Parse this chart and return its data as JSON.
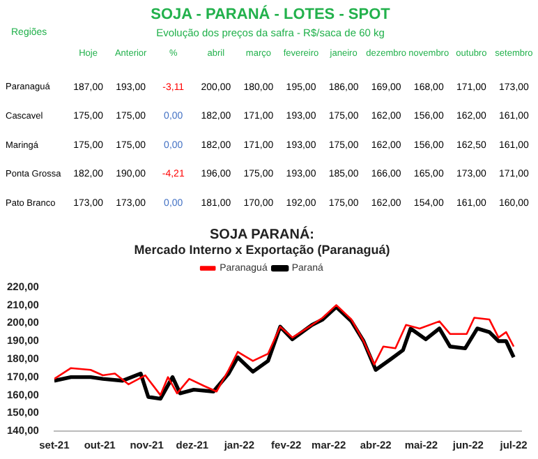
{
  "chart_data": [
    {
      "type": "heatmap",
      "title": "SOJA - PARANÁ - LOTES - SPOT",
      "subtitle": "Evolução dos preços da safra - R$/saca de 60 kg",
      "ylabel": "Regiões",
      "categories": [
        "Hoje",
        "Anterior",
        "%",
        "abril",
        "março",
        "fevereiro",
        "janeiro",
        "dezembro",
        "novembro",
        "outubro",
        "setembro"
      ],
      "y_categories": [
        "Paranaguá",
        "Cascavel",
        "Maringá",
        "Ponta Grossa",
        "Pato Branco"
      ],
      "cells": [
        [
          187,
          193,
          -3.11,
          200,
          180,
          195,
          186,
          169,
          168,
          171,
          173
        ],
        [
          175,
          175,
          0,
          182,
          171,
          193,
          175,
          162,
          156,
          162,
          161
        ],
        [
          175,
          175,
          0,
          182,
          171,
          193,
          175,
          162,
          156,
          162.5,
          161
        ],
        [
          182,
          190,
          -4.21,
          196,
          175,
          193,
          185,
          166,
          165,
          173,
          171
        ],
        [
          173,
          173,
          0,
          181,
          170,
          192,
          175,
          162,
          154,
          161,
          160
        ]
      ],
      "cell_labels": [
        [
          "187,00",
          "193,00",
          "-3,11",
          "200,00",
          "180,00",
          "195,00",
          "186,00",
          "169,00",
          "168,00",
          "171,00",
          "173,00"
        ],
        [
          "175,00",
          "175,00",
          "0,00",
          "182,00",
          "171,00",
          "193,00",
          "175,00",
          "162,00",
          "156,00",
          "162,00",
          "161,00"
        ],
        [
          "175,00",
          "175,00",
          "0,00",
          "182,00",
          "171,00",
          "193,00",
          "175,00",
          "162,00",
          "156,00",
          "162,50",
          "161,00"
        ],
        [
          "182,00",
          "190,00",
          "-4,21",
          "196,00",
          "175,00",
          "193,00",
          "185,00",
          "166,00",
          "165,00",
          "173,00",
          "171,00"
        ],
        [
          "173,00",
          "173,00",
          "0,00",
          "181,00",
          "170,00",
          "192,00",
          "175,00",
          "162,00",
          "154,00",
          "161,00",
          "160,00"
        ]
      ]
    },
    {
      "type": "line",
      "title": "SOJA PARANÁ:",
      "subtitle": "Mercado Interno x Exportação (Paranaguá)",
      "legend": "top",
      "grid": false,
      "xlim": [
        "2021-09-01",
        "2022-07-06"
      ],
      "xticks": [
        {
          "value": "2021-09-01",
          "label": "set-21"
        },
        {
          "value": "2021-10-01",
          "label": "out-21"
        },
        {
          "value": "2021-11-01",
          "label": "nov-21"
        },
        {
          "value": "2021-12-01",
          "label": "dez-21"
        },
        {
          "value": "2022-01-01",
          "label": "jan-22"
        },
        {
          "value": "2022-02-01",
          "label": "fev-22"
        },
        {
          "value": "2022-03-01",
          "label": "mar-22"
        },
        {
          "value": "2022-04-01",
          "label": "abr-22"
        },
        {
          "value": "2022-05-01",
          "label": "mai-22"
        },
        {
          "value": "2022-06-01",
          "label": "jun-22"
        },
        {
          "value": "2022-07-01",
          "label": "jul-22"
        }
      ],
      "ylim": [
        140,
        220
      ],
      "yticks": [
        {
          "value": 140,
          "label": "140,00"
        },
        {
          "value": 150,
          "label": "150,00"
        },
        {
          "value": 160,
          "label": "160,00"
        },
        {
          "value": 170,
          "label": "170,00"
        },
        {
          "value": 180,
          "label": "180,00"
        },
        {
          "value": 190,
          "label": "190,00"
        },
        {
          "value": 200,
          "label": "200,00"
        },
        {
          "value": 210,
          "label": "210,00"
        },
        {
          "value": 220,
          "label": "220,00"
        }
      ],
      "series": [
        {
          "name": "Paranaguá",
          "color": "#ff0000",
          "x": [
            "2021-09-01",
            "2021-09-12",
            "2021-09-25",
            "2021-10-03",
            "2021-10-11",
            "2021-10-20",
            "2021-10-31",
            "2021-11-10",
            "2021-11-15",
            "2021-11-21",
            "2021-11-29",
            "2021-12-09",
            "2021-12-17",
            "2021-12-25",
            "2021-12-31",
            "2022-01-10",
            "2022-01-20",
            "2022-01-28",
            "2022-02-05",
            "2022-02-18",
            "2022-02-25",
            "2022-03-06",
            "2022-03-16",
            "2022-03-24",
            "2022-03-31",
            "2022-04-06",
            "2022-04-14",
            "2022-04-21",
            "2022-04-30",
            "2022-05-13",
            "2022-05-20",
            "2022-05-31",
            "2022-06-05",
            "2022-06-15",
            "2022-06-21",
            "2022-06-26",
            "2022-07-01"
          ],
          "values": [
            169,
            175,
            174,
            171,
            172,
            166,
            171,
            160,
            170,
            161,
            169,
            165,
            162,
            174,
            184,
            179,
            183,
            198,
            192,
            199,
            203,
            210,
            202,
            190,
            177,
            187,
            186,
            199,
            197,
            201,
            194,
            194,
            203,
            202,
            192,
            195,
            187
          ]
        },
        {
          "name": "Paraná",
          "color": "#000000",
          "x": [
            "2021-09-01",
            "2021-09-12",
            "2021-09-25",
            "2021-10-03",
            "2021-10-16",
            "2021-10-28",
            "2021-11-02",
            "2021-11-10",
            "2021-11-18",
            "2021-11-23",
            "2021-12-02",
            "2021-12-15",
            "2021-12-25",
            "2021-12-31",
            "2022-01-10",
            "2022-01-20",
            "2022-01-28",
            "2022-02-05",
            "2022-02-18",
            "2022-02-25",
            "2022-03-06",
            "2022-03-16",
            "2022-03-24",
            "2022-04-01",
            "2022-04-11",
            "2022-04-19",
            "2022-04-24",
            "2022-05-04",
            "2022-05-13",
            "2022-05-20",
            "2022-05-30",
            "2022-06-07",
            "2022-06-15",
            "2022-06-21",
            "2022-06-26",
            "2022-07-01"
          ],
          "values": [
            168,
            170,
            170,
            169,
            168,
            172,
            159,
            158,
            170,
            161,
            163,
            162,
            172,
            181,
            173,
            179,
            198,
            191,
            199,
            202,
            209,
            201,
            190,
            174,
            180,
            185,
            197,
            191,
            197,
            187,
            186,
            197,
            195,
            190,
            190,
            181
          ]
        }
      ]
    }
  ]
}
